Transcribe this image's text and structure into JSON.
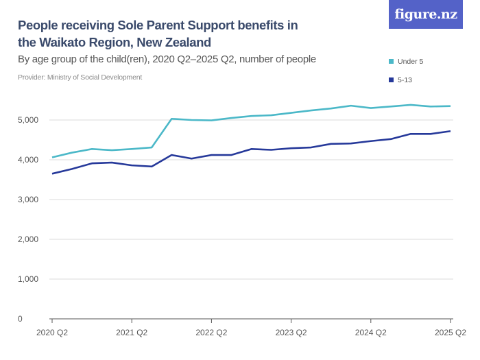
{
  "header": {
    "title": "People receiving Sole Parent Support benefits in the Waikato Region, New Zealand",
    "subtitle": "By age group of the child(ren), 2020 Q2–2025 Q2, number of people",
    "provider": "Provider: Ministry of Social Development",
    "logo": "figure.nz",
    "logo_color": "#5462c8"
  },
  "chart_data": {
    "type": "line",
    "title": "People receiving Sole Parent Support benefits in the Waikato Region, New Zealand",
    "subtitle": "By age group of the child(ren), 2020 Q2–2025 Q2, number of people",
    "x": [
      "2020 Q2",
      "2020 Q3",
      "2020 Q4",
      "2021 Q1",
      "2021 Q2",
      "2021 Q3",
      "2021 Q4",
      "2022 Q1",
      "2022 Q2",
      "2022 Q3",
      "2022 Q4",
      "2023 Q1",
      "2023 Q2",
      "2023 Q3",
      "2023 Q4",
      "2024 Q1",
      "2024 Q2",
      "2024 Q3",
      "2024 Q4",
      "2025 Q1",
      "2025 Q2"
    ],
    "x_tick_labels": [
      "2020 Q2",
      "2021 Q2",
      "2022 Q2",
      "2023 Q2",
      "2024 Q2",
      "2025 Q2"
    ],
    "y_ticks": [
      0,
      1000,
      2000,
      3000,
      4000,
      5000
    ],
    "y_tick_labels": [
      "0",
      "1,000",
      "2,000",
      "3,000",
      "4,000",
      "5,000"
    ],
    "ylim": [
      0,
      5600
    ],
    "grid": true,
    "legend_position": "top-right",
    "series": [
      {
        "name": "Under 5",
        "color": "#4bb8c8",
        "values": [
          4060,
          4180,
          4270,
          4240,
          4270,
          4310,
          5030,
          5000,
          4990,
          5050,
          5100,
          5120,
          5180,
          5240,
          5290,
          5360,
          5300,
          5340,
          5380,
          5340,
          5350
        ]
      },
      {
        "name": "5-13",
        "color": "#26399a",
        "values": [
          3650,
          3770,
          3910,
          3930,
          3860,
          3830,
          4120,
          4030,
          4120,
          4120,
          4270,
          4250,
          4290,
          4310,
          4400,
          4410,
          4470,
          4520,
          4650,
          4650,
          4720
        ]
      }
    ]
  }
}
